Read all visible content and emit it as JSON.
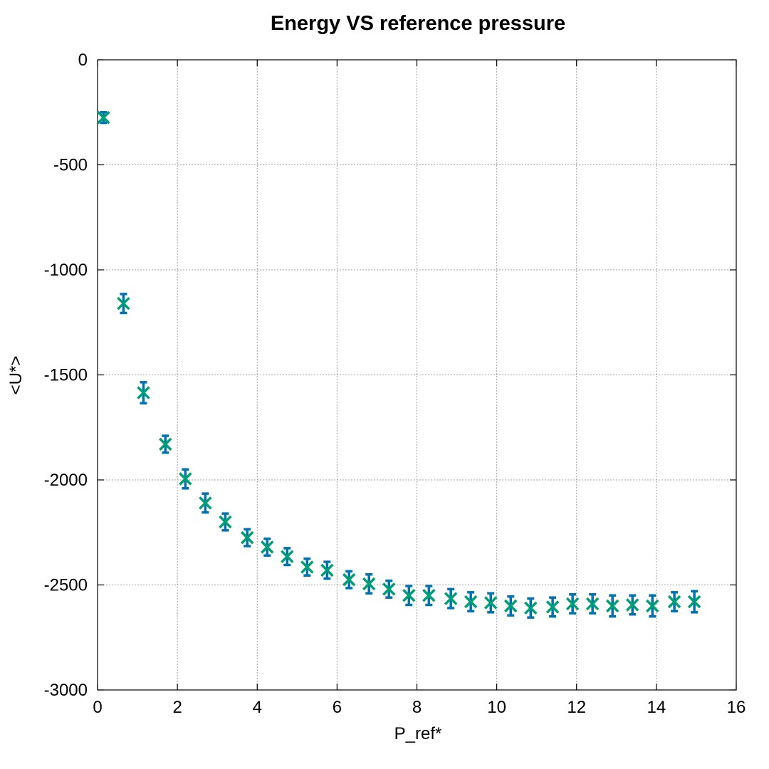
{
  "chart_data": {
    "type": "scatter",
    "title": "Energy VS reference pressure",
    "xlabel": "P_ref*",
    "ylabel": "<U*>",
    "xlim": [
      0,
      16
    ],
    "ylim": [
      -3000,
      0
    ],
    "xticks": [
      0,
      2,
      4,
      6,
      8,
      10,
      12,
      14,
      16
    ],
    "yticks": [
      0,
      -500,
      -1000,
      -1500,
      -2000,
      -2500,
      -3000
    ],
    "grid": true,
    "legend": "none",
    "colors": {
      "errorbar": "#0072b2",
      "marker": "#009e73"
    },
    "series": [
      {
        "points": [
          {
            "x": 0.15,
            "y": -275,
            "err": 25
          },
          {
            "x": 0.65,
            "y": -1160,
            "err": 45
          },
          {
            "x": 1.15,
            "y": -1585,
            "err": 50
          },
          {
            "x": 1.7,
            "y": -1830,
            "err": 40
          },
          {
            "x": 2.2,
            "y": -1995,
            "err": 45
          },
          {
            "x": 2.7,
            "y": -2110,
            "err": 45
          },
          {
            "x": 3.2,
            "y": -2200,
            "err": 40
          },
          {
            "x": 3.75,
            "y": -2275,
            "err": 40
          },
          {
            "x": 4.25,
            "y": -2320,
            "err": 40
          },
          {
            "x": 4.75,
            "y": -2365,
            "err": 40
          },
          {
            "x": 5.25,
            "y": -2415,
            "err": 40
          },
          {
            "x": 5.75,
            "y": -2430,
            "err": 40
          },
          {
            "x": 6.3,
            "y": -2475,
            "err": 40
          },
          {
            "x": 6.8,
            "y": -2495,
            "err": 45
          },
          {
            "x": 7.3,
            "y": -2520,
            "err": 40
          },
          {
            "x": 7.8,
            "y": -2550,
            "err": 45
          },
          {
            "x": 8.3,
            "y": -2550,
            "err": 45
          },
          {
            "x": 8.85,
            "y": -2565,
            "err": 45
          },
          {
            "x": 9.35,
            "y": -2580,
            "err": 45
          },
          {
            "x": 9.85,
            "y": -2585,
            "err": 45
          },
          {
            "x": 10.35,
            "y": -2600,
            "err": 45
          },
          {
            "x": 10.85,
            "y": -2610,
            "err": 45
          },
          {
            "x": 11.4,
            "y": -2605,
            "err": 45
          },
          {
            "x": 11.9,
            "y": -2590,
            "err": 45
          },
          {
            "x": 12.4,
            "y": -2590,
            "err": 45
          },
          {
            "x": 12.9,
            "y": -2600,
            "err": 50
          },
          {
            "x": 13.4,
            "y": -2595,
            "err": 45
          },
          {
            "x": 13.9,
            "y": -2600,
            "err": 50
          },
          {
            "x": 14.45,
            "y": -2580,
            "err": 45
          },
          {
            "x": 14.95,
            "y": -2580,
            "err": 50
          }
        ]
      }
    ]
  }
}
